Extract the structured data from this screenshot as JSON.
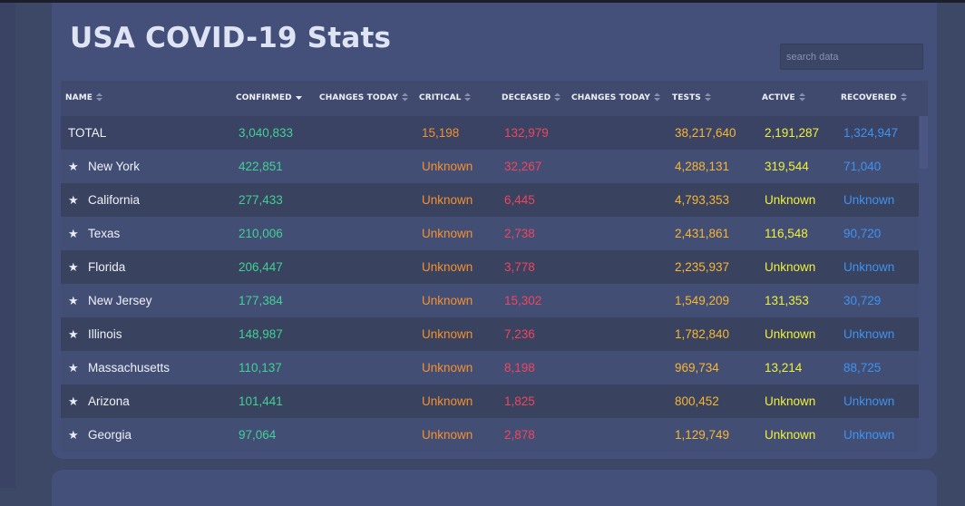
{
  "page": {
    "title": "USA COVID-19 Stats"
  },
  "search": {
    "placeholder": "search data",
    "value": ""
  },
  "table": {
    "columns": [
      {
        "key": "name",
        "label": "NAME",
        "sort": "none"
      },
      {
        "key": "confirmed",
        "label": "CONFIRMED",
        "sort": "desc"
      },
      {
        "key": "changes_today_1",
        "label": "CHANGES TODAY",
        "sort": "none"
      },
      {
        "key": "critical",
        "label": "CRITICAL",
        "sort": "none"
      },
      {
        "key": "deceased",
        "label": "DECEASED",
        "sort": "none"
      },
      {
        "key": "changes_today_2",
        "label": "CHANGES TODAY",
        "sort": "none"
      },
      {
        "key": "tests",
        "label": "TESTS",
        "sort": "none"
      },
      {
        "key": "active",
        "label": "ACTIVE",
        "sort": "none"
      },
      {
        "key": "recovered",
        "label": "RECOVERED",
        "sort": "none"
      }
    ],
    "total": {
      "name": "TOTAL",
      "confirmed": "3,040,833",
      "changes_today_1": "",
      "critical": "15,198",
      "deceased": "132,979",
      "changes_today_2": "",
      "tests": "38,217,640",
      "active": "2,191,287",
      "recovered": "1,324,947"
    },
    "rows": [
      {
        "name": "New York",
        "confirmed": "422,851",
        "changes_today_1": "",
        "critical": "Unknown",
        "deceased": "32,267",
        "changes_today_2": "",
        "tests": "4,288,131",
        "active": "319,544",
        "recovered": "71,040"
      },
      {
        "name": "California",
        "confirmed": "277,433",
        "changes_today_1": "",
        "critical": "Unknown",
        "deceased": "6,445",
        "changes_today_2": "",
        "tests": "4,793,353",
        "active": "Unknown",
        "recovered": "Unknown"
      },
      {
        "name": "Texas",
        "confirmed": "210,006",
        "changes_today_1": "",
        "critical": "Unknown",
        "deceased": "2,738",
        "changes_today_2": "",
        "tests": "2,431,861",
        "active": "116,548",
        "recovered": "90,720"
      },
      {
        "name": "Florida",
        "confirmed": "206,447",
        "changes_today_1": "",
        "critical": "Unknown",
        "deceased": "3,778",
        "changes_today_2": "",
        "tests": "2,235,937",
        "active": "Unknown",
        "recovered": "Unknown"
      },
      {
        "name": "New Jersey",
        "confirmed": "177,384",
        "changes_today_1": "",
        "critical": "Unknown",
        "deceased": "15,302",
        "changes_today_2": "",
        "tests": "1,549,209",
        "active": "131,353",
        "recovered": "30,729"
      },
      {
        "name": "Illinois",
        "confirmed": "148,987",
        "changes_today_1": "",
        "critical": "Unknown",
        "deceased": "7,236",
        "changes_today_2": "",
        "tests": "1,782,840",
        "active": "Unknown",
        "recovered": "Unknown"
      },
      {
        "name": "Massachusetts",
        "confirmed": "110,137",
        "changes_today_1": "",
        "critical": "Unknown",
        "deceased": "8,198",
        "changes_today_2": "",
        "tests": "969,734",
        "active": "13,214",
        "recovered": "88,725"
      },
      {
        "name": "Arizona",
        "confirmed": "101,441",
        "changes_today_1": "",
        "critical": "Unknown",
        "deceased": "1,825",
        "changes_today_2": "",
        "tests": "800,452",
        "active": "Unknown",
        "recovered": "Unknown"
      },
      {
        "name": "Georgia",
        "confirmed": "97,064",
        "changes_today_1": "",
        "critical": "Unknown",
        "deceased": "2,878",
        "changes_today_2": "",
        "tests": "1,129,749",
        "active": "Unknown",
        "recovered": "Unknown"
      }
    ]
  },
  "icons": {
    "row_marker": "star-icon",
    "sort": "sort-arrows-icon",
    "sort_desc": "sort-desc-icon"
  },
  "colors": {
    "confirmed": "#41d195",
    "critical": "#f5902e",
    "deceased": "#f0455e",
    "tests": "#f7b633",
    "active": "#eef13a",
    "recovered": "#3f93f0"
  }
}
